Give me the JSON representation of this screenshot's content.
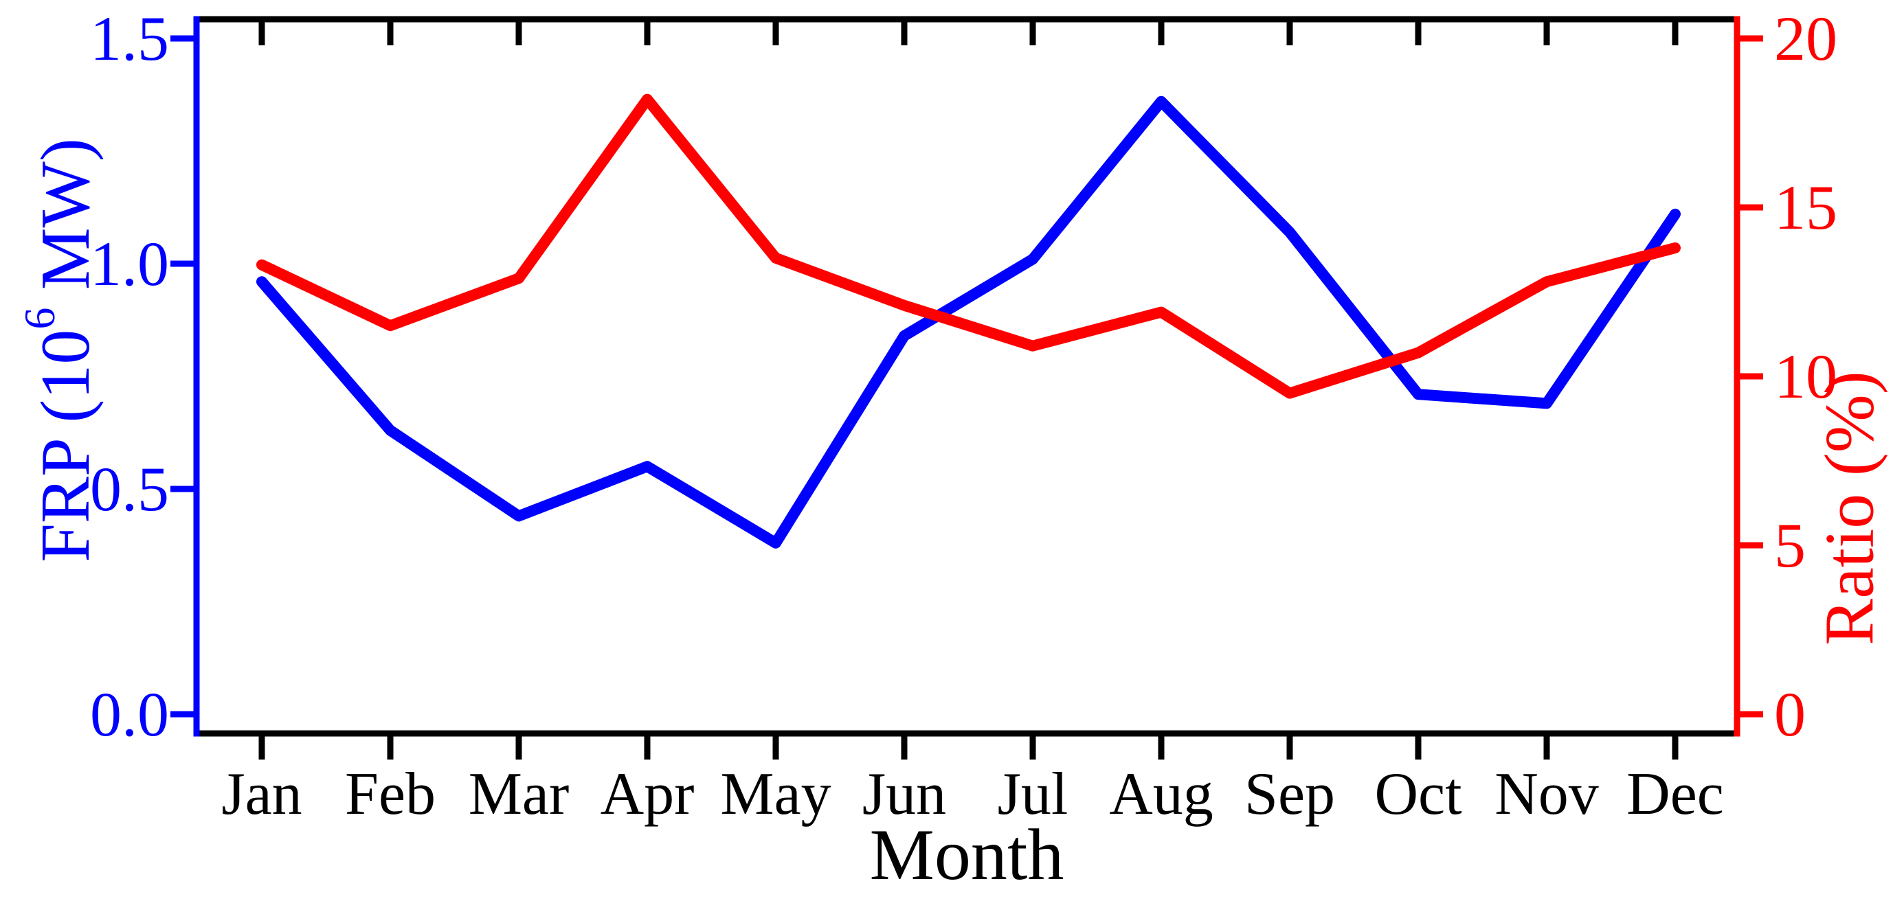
{
  "chart_data": {
    "type": "line",
    "title": "",
    "categories": [
      "Jan",
      "Feb",
      "Mar",
      "Apr",
      "May",
      "Jun",
      "Jul",
      "Aug",
      "Sep",
      "Oct",
      "Nov",
      "Dec"
    ],
    "series": [
      {
        "name": "FRP",
        "axis": "left",
        "color": "#0000ff",
        "values": [
          0.96,
          0.63,
          0.44,
          0.55,
          0.38,
          0.84,
          1.01,
          1.36,
          1.07,
          0.71,
          0.69,
          1.11
        ]
      },
      {
        "name": "Ratio",
        "axis": "right",
        "color": "#ff0000",
        "values": [
          13.3,
          11.5,
          12.9,
          18.2,
          13.5,
          12.1,
          10.9,
          11.9,
          9.5,
          10.7,
          12.8,
          13.8
        ]
      }
    ],
    "x_axis": {
      "label": "Month",
      "tick_labels": [
        "Jan",
        "Feb",
        "Mar",
        "Apr",
        "May",
        "Jun",
        "Jul",
        "Aug",
        "Sep",
        "Oct",
        "Nov",
        "Dec"
      ],
      "color": "#000000"
    },
    "y_axis_left": {
      "label_plain": "FRP (10^6 MW)",
      "label_parts": {
        "pre": "FRP (10",
        "sup": "6",
        "post": " MW)"
      },
      "range": [
        0,
        1.5
      ],
      "ticks": [
        0.0,
        0.5,
        1.0,
        1.5
      ],
      "tick_labels": [
        "0.0",
        "0.5",
        "1.0",
        "1.5"
      ],
      "color": "#0000ff"
    },
    "y_axis_right": {
      "label": "Ratio (%)",
      "range": [
        0,
        20
      ],
      "ticks": [
        0,
        5,
        10,
        15,
        20
      ],
      "tick_labels": [
        "0",
        "5",
        "10",
        "15",
        "20"
      ],
      "color": "#ff0000"
    },
    "grid": false,
    "legend": "none",
    "background_color": "#ffffff",
    "frame_color": "#000000"
  }
}
